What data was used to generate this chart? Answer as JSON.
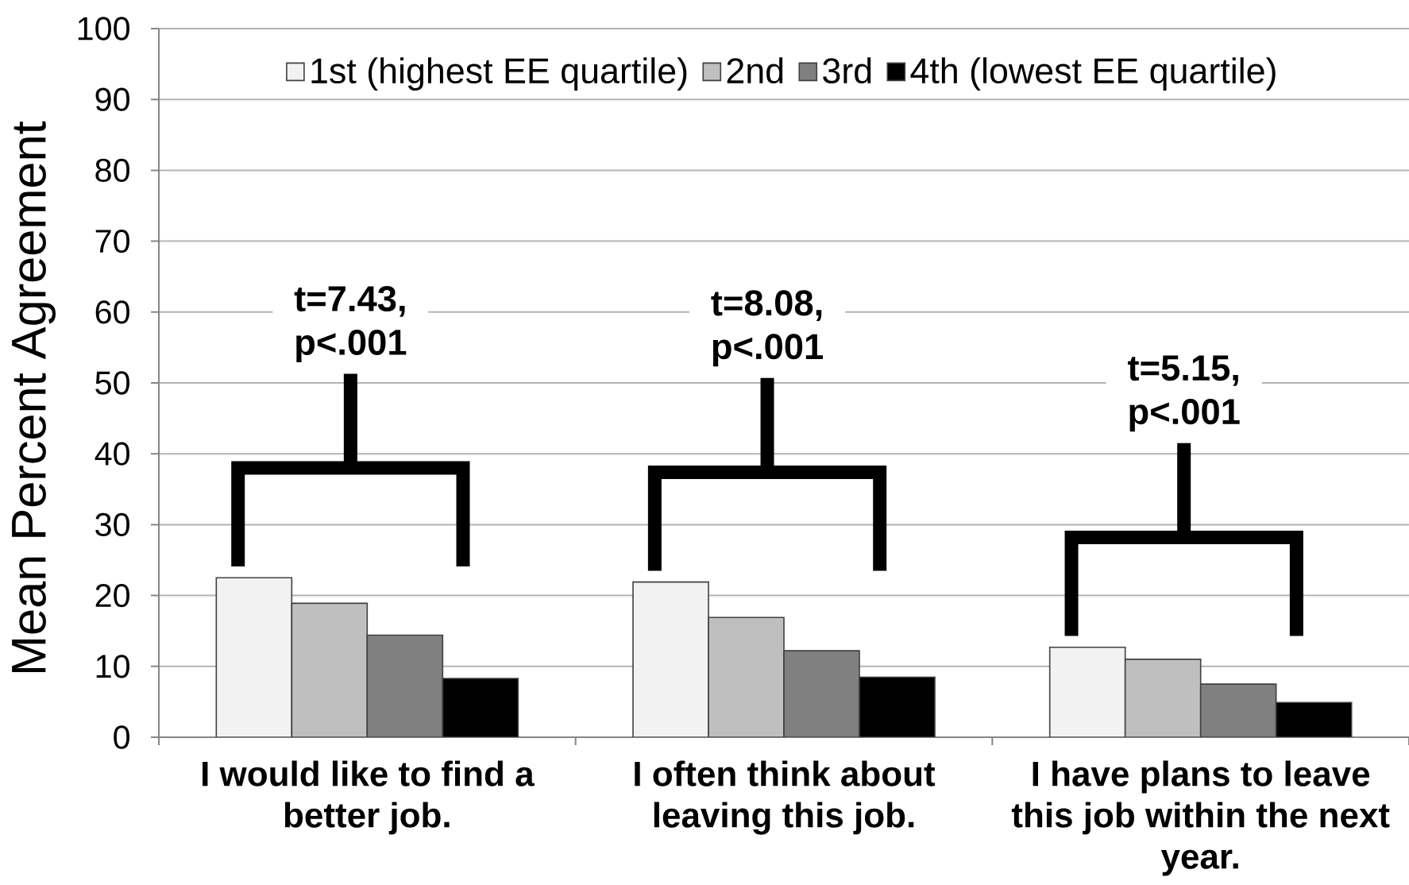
{
  "chart_data": {
    "type": "bar",
    "ylabel": "Mean Percent Agreement",
    "categories": [
      "I would like to find a better job.",
      "I often think about leaving this job.",
      "I have plans to leave this job within the next year."
    ],
    "series": [
      {
        "name": "1st (highest EE quartile)",
        "color": "#f2f2f2",
        "values": [
          22.5,
          21.9,
          12.7
        ]
      },
      {
        "name": "2nd",
        "color": "#bfbfbf",
        "values": [
          18.9,
          16.9,
          11.0
        ]
      },
      {
        "name": "3rd",
        "color": "#808080",
        "values": [
          14.4,
          12.2,
          7.5
        ]
      },
      {
        "name": "4th (lowest EE quartile)",
        "color": "#000000",
        "values": [
          8.3,
          8.5,
          4.9
        ]
      }
    ],
    "ylim": [
      0,
      100
    ],
    "yticks": [
      0,
      10,
      20,
      30,
      40,
      50,
      60,
      70,
      80,
      90,
      100
    ],
    "grid": "y",
    "legend": "top",
    "annotations": [
      "t=7.43, p<.001",
      "t=8.08, p<.001",
      "t=5.15, p<.001"
    ]
  }
}
